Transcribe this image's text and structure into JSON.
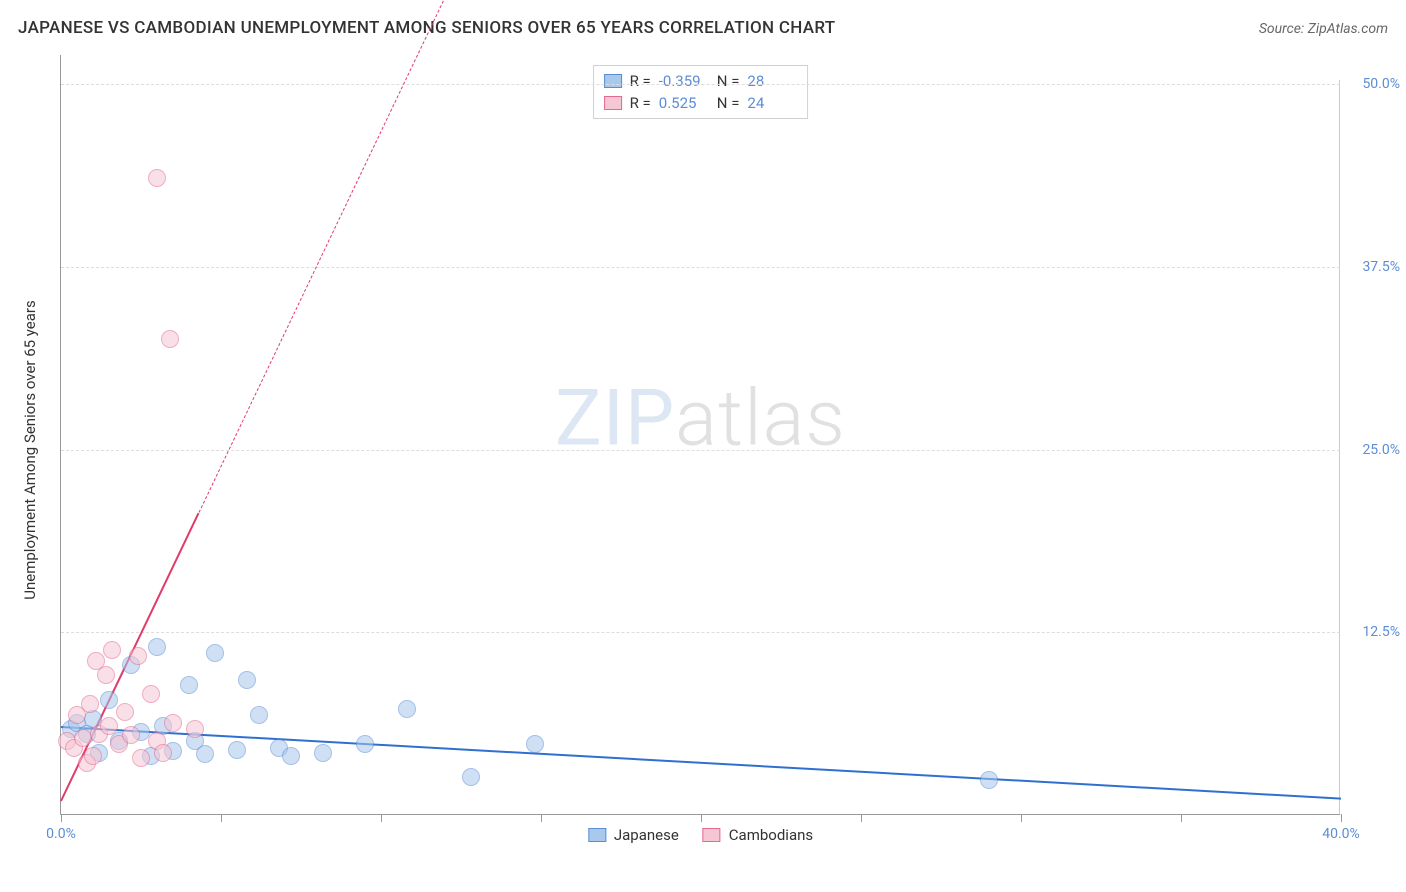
{
  "header": {
    "title": "JAPANESE VS CAMBODIAN UNEMPLOYMENT AMONG SENIORS OVER 65 YEARS CORRELATION CHART",
    "source": "Source: ZipAtlas.com"
  },
  "chart": {
    "type": "scatter",
    "y_axis_label": "Unemployment Among Seniors over 65 years",
    "xlim": [
      0,
      40
    ],
    "ylim": [
      0,
      52
    ],
    "x_tick_step": 5,
    "x_tick_labels": {
      "0": "0.0%",
      "40": "40.0%"
    },
    "y_ticks": [
      12.5,
      25.0,
      37.5,
      50.0
    ],
    "y_tick_labels": [
      "12.5%",
      "25.0%",
      "37.5%",
      "50.0%"
    ],
    "grid_color": "#dddddd",
    "axis_color": "#999999",
    "background_color": "#ffffff",
    "point_radius": 9,
    "point_opacity": 0.55,
    "series": [
      {
        "name": "Japanese",
        "color_fill": "#a8c8ec",
        "color_stroke": "#5b8dd6",
        "trend_color": "#2f6fd0",
        "R": "-0.359",
        "N": "28",
        "trend": {
          "x1": 0,
          "y1": 6.1,
          "x2": 40,
          "y2": 1.2,
          "solid_until_x": 40
        },
        "points": [
          [
            0.3,
            5.8
          ],
          [
            0.5,
            6.2
          ],
          [
            0.8,
            5.5
          ],
          [
            1.0,
            6.5
          ],
          [
            1.2,
            4.2
          ],
          [
            1.5,
            7.8
          ],
          [
            1.8,
            5.0
          ],
          [
            2.2,
            10.2
          ],
          [
            2.5,
            5.6
          ],
          [
            2.8,
            4.0
          ],
          [
            3.0,
            11.4
          ],
          [
            3.2,
            6.0
          ],
          [
            3.5,
            4.3
          ],
          [
            4.0,
            8.8
          ],
          [
            4.2,
            5.0
          ],
          [
            4.5,
            4.1
          ],
          [
            4.8,
            11.0
          ],
          [
            5.5,
            4.4
          ],
          [
            5.8,
            9.2
          ],
          [
            6.2,
            6.8
          ],
          [
            6.8,
            4.5
          ],
          [
            7.2,
            4.0
          ],
          [
            8.2,
            4.2
          ],
          [
            9.5,
            4.8
          ],
          [
            10.8,
            7.2
          ],
          [
            12.8,
            2.5
          ],
          [
            14.8,
            4.8
          ],
          [
            29.0,
            2.3
          ]
        ]
      },
      {
        "name": "Cambodians",
        "color_fill": "#f5c6d4",
        "color_stroke": "#e46a8f",
        "trend_color": "#e03b6a",
        "R": "0.525",
        "N": "24",
        "trend": {
          "x1": 0,
          "y1": 1.0,
          "x2": 12,
          "y2": 56,
          "solid_until_x": 4.3
        },
        "points": [
          [
            0.2,
            5.0
          ],
          [
            0.4,
            4.5
          ],
          [
            0.5,
            6.8
          ],
          [
            0.7,
            5.2
          ],
          [
            0.8,
            3.5
          ],
          [
            0.9,
            7.5
          ],
          [
            1.0,
            4.0
          ],
          [
            1.1,
            10.5
          ],
          [
            1.2,
            5.5
          ],
          [
            1.4,
            9.5
          ],
          [
            1.5,
            6.0
          ],
          [
            1.6,
            11.2
          ],
          [
            1.8,
            4.8
          ],
          [
            2.0,
            7.0
          ],
          [
            2.2,
            5.4
          ],
          [
            2.4,
            10.8
          ],
          [
            2.5,
            3.8
          ],
          [
            2.8,
            8.2
          ],
          [
            3.0,
            5.0
          ],
          [
            3.2,
            4.2
          ],
          [
            3.5,
            6.2
          ],
          [
            3.4,
            32.5
          ],
          [
            3.0,
            43.5
          ],
          [
            4.2,
            5.8
          ]
        ]
      }
    ],
    "legend_top": {
      "rows": [
        {
          "series": 0,
          "R_label": "R =",
          "N_label": "N ="
        },
        {
          "series": 1,
          "R_label": "R =",
          "N_label": "N ="
        }
      ]
    },
    "legend_bottom": [
      {
        "series": 0
      },
      {
        "series": 1
      }
    ],
    "watermark": {
      "part1": "ZIP",
      "part2": "atlas"
    }
  }
}
